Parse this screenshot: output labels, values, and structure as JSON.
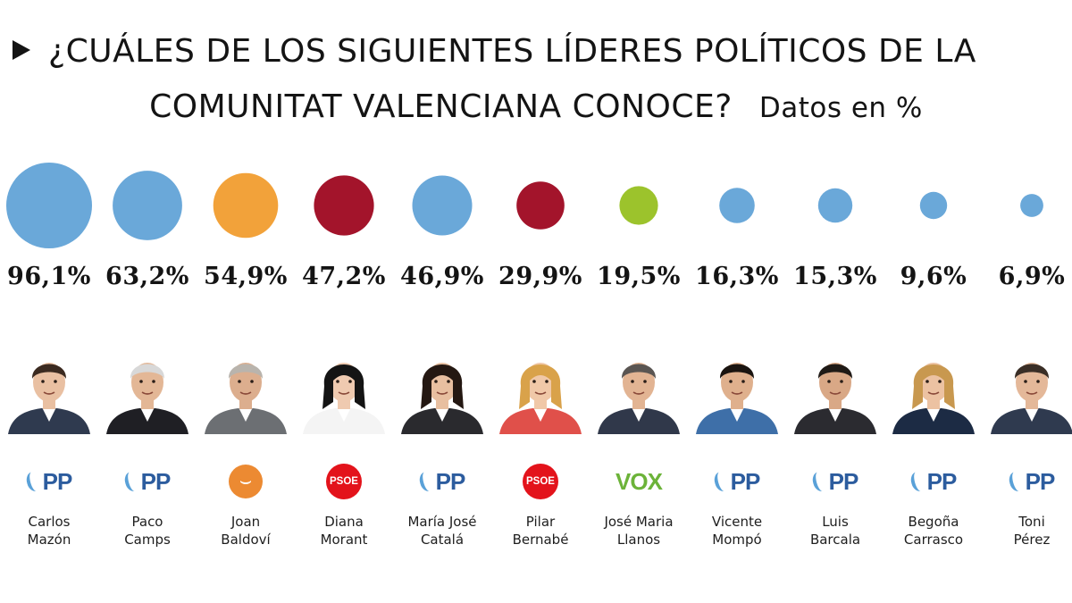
{
  "title": {
    "line1": "¿CUÁLES DE LOS SIGUIENTES LÍDERES POLÍTICOS DE LA",
    "line2": "COMUNITAT VALENCIANA CONOCE?",
    "subtitle": "Datos en %",
    "arrow_icon": "play-triangle-icon"
  },
  "chart_data": {
    "type": "bubble",
    "title": "¿CUÁLES DE LOS SIGUIENTES LÍDERES POLÍTICOS DE LA COMUNITAT VALENCIANA CONOCE?",
    "subtitle": "Datos en %",
    "unit": "%",
    "categories": [
      "Carlos Mazón",
      "Paco Camps",
      "Joan Baldoví",
      "Diana Morant",
      "María José Catalá",
      "Pilar Bernabé",
      "José Maria Llanos",
      "Vicente Mompó",
      "Luis Barcala",
      "Begoña Carrasco",
      "Toni Pérez"
    ],
    "values": [
      96.1,
      63.2,
      54.9,
      47.2,
      46.9,
      29.9,
      19.5,
      16.3,
      15.3,
      9.6,
      6.9
    ],
    "labels": [
      "96,1%",
      "63,2%",
      "54,9%",
      "47,2%",
      "46,9%",
      "29,9%",
      "19,5%",
      "16,3%",
      "15,3%",
      "9,6%",
      "6,9%"
    ],
    "parties": [
      "PP",
      "PP",
      "Compromís",
      "PSOE",
      "PP",
      "PSOE",
      "VOX",
      "PP",
      "PP",
      "PP",
      "PP"
    ],
    "colors": [
      "#6aa8d9",
      "#6aa8d9",
      "#f2a23a",
      "#a3142b",
      "#6aa8d9",
      "#a3142b",
      "#9cc32c",
      "#6aa8d9",
      "#6aa8d9",
      "#6aa8d9",
      "#6aa8d9"
    ]
  },
  "people": [
    {
      "first": "Carlos",
      "last": "Mazón",
      "party": "PP",
      "party_label": "PP",
      "party_icon": "pp-logo-icon",
      "portrait_icon": "portrait-man-icon"
    },
    {
      "first": "Paco",
      "last": "Camps",
      "party": "PP",
      "party_label": "PP",
      "party_icon": "pp-logo-icon",
      "portrait_icon": "portrait-man-icon"
    },
    {
      "first": "Joan",
      "last": "Baldoví",
      "party": "Compromís",
      "party_label": "",
      "party_icon": "compromis-logo-icon",
      "portrait_icon": "portrait-man-icon"
    },
    {
      "first": "Diana",
      "last": "Morant",
      "party": "PSOE",
      "party_label": "PSOE",
      "party_icon": "psoe-logo-icon",
      "portrait_icon": "portrait-woman-icon"
    },
    {
      "first": "María José",
      "last": "Catalá",
      "party": "PP",
      "party_label": "PP",
      "party_icon": "pp-logo-icon",
      "portrait_icon": "portrait-woman-icon"
    },
    {
      "first": "Pilar",
      "last": "Bernabé",
      "party": "PSOE",
      "party_label": "PSOE",
      "party_icon": "psoe-logo-icon",
      "portrait_icon": "portrait-woman-icon"
    },
    {
      "first": "José Maria",
      "last": "Llanos",
      "party": "VOX",
      "party_label": "VOX",
      "party_icon": "vox-logo-icon",
      "portrait_icon": "portrait-man-icon"
    },
    {
      "first": "Vicente",
      "last": "Mompó",
      "party": "PP",
      "party_label": "PP",
      "party_icon": "pp-logo-icon",
      "portrait_icon": "portrait-man-icon"
    },
    {
      "first": "Luis",
      "last": "Barcala",
      "party": "PP",
      "party_label": "PP",
      "party_icon": "pp-logo-icon",
      "portrait_icon": "portrait-man-icon"
    },
    {
      "first": "Begoña",
      "last": "Carrasco",
      "party": "PP",
      "party_label": "PP",
      "party_icon": "pp-logo-icon",
      "portrait_icon": "portrait-woman-icon"
    },
    {
      "first": "Toni",
      "last": "Pérez",
      "party": "PP",
      "party_label": "PP",
      "party_icon": "pp-logo-icon",
      "portrait_icon": "portrait-man-icon"
    }
  ]
}
